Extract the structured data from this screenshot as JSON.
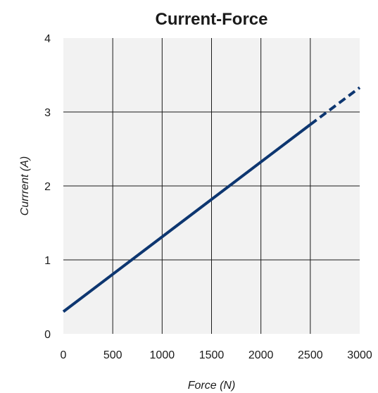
{
  "chart_data": {
    "type": "line",
    "title": "Current-Force",
    "xlabel": "Force (N)",
    "ylabel": "Currrent (A)",
    "xlim": [
      0,
      3000
    ],
    "ylim": [
      0,
      4
    ],
    "xticks": [
      0,
      500,
      1000,
      1500,
      2000,
      2500,
      3000
    ],
    "yticks": [
      0,
      1,
      2,
      3,
      4
    ],
    "grid": true,
    "background": "#f2f2f2",
    "series": [
      {
        "style": "solid",
        "color": "#0d3670",
        "x": [
          0,
          2500
        ],
        "y": [
          0.3,
          2.83
        ]
      },
      {
        "style": "dashed",
        "color": "#0d3670",
        "x": [
          2500,
          3000
        ],
        "y": [
          2.83,
          3.33
        ]
      }
    ]
  }
}
